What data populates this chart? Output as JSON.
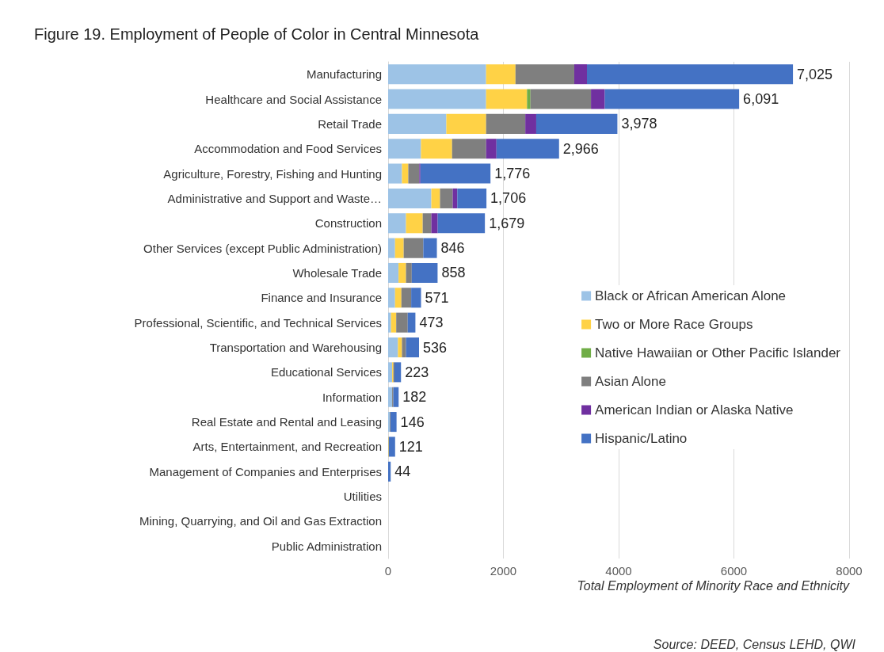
{
  "chart_data": {
    "type": "bar",
    "orientation": "horizontal",
    "stacked": true,
    "title": "Figure 19. Employment of People of Color in Central Minnesota",
    "xlabel": "Total Employment of Minority Race and Ethnicity",
    "annotations": [
      "Source: DEED, Census LEHD, QWI"
    ],
    "categories": [
      "Manufacturing",
      "Healthcare and Social Assistance",
      "Retail Trade",
      "Accommodation and Food Services",
      "Agriculture, Forestry, Fishing and Hunting",
      "Administrative and Support and Waste…",
      "Construction",
      "Other Services (except Public Administration)",
      "Wholesale Trade",
      "Finance and Insurance",
      "Professional, Scientific, and Technical Services",
      "Transportation and Warehousing",
      "Educational Services",
      "Information",
      "Real Estate and Rental and Leasing",
      "Arts, Entertainment, and Recreation",
      "Management of Companies and Enterprises",
      "Utilities",
      "Mining, Quarrying, and Oil and Gas Extraction",
      "Public Administration"
    ],
    "series": [
      {
        "name": "Black or African American Alone",
        "color": "#9dc3e6",
        "values": [
          1700,
          1700,
          1010,
          570,
          240,
          750,
          310,
          120,
          180,
          120,
          50,
          170,
          70,
          70,
          30,
          null,
          null,
          0,
          0,
          0
        ]
      },
      {
        "name": "Two or More Race Groups",
        "color": "#ffd246",
        "values": [
          510,
          710,
          690,
          540,
          110,
          150,
          290,
          150,
          130,
          110,
          90,
          70,
          20,
          0,
          0,
          10,
          0,
          0,
          0,
          0
        ]
      },
      {
        "name": "Native Hawaiian or Other Pacific Islander",
        "color": "#70ad47",
        "values": [
          0,
          60,
          0,
          0,
          0,
          0,
          0,
          0,
          0,
          0,
          0,
          0,
          0,
          0,
          0,
          0,
          0,
          0,
          0,
          0
        ]
      },
      {
        "name": "Asian Alone",
        "color": "#7f7f7f",
        "values": [
          1020,
          1050,
          680,
          590,
          190,
          220,
          150,
          340,
          100,
          170,
          200,
          70,
          20,
          20,
          10,
          0,
          0,
          0,
          0,
          0
        ]
      },
      {
        "name": "American Indian or Alaska Native",
        "color": "#7030a0",
        "values": [
          220,
          240,
          190,
          180,
          20,
          80,
          110,
          0,
          0,
          0,
          0,
          0,
          0,
          0,
          0,
          0,
          0,
          0,
          0,
          0
        ]
      },
      {
        "name": "Hispanic/Latino",
        "color": "#4472c4",
        "values": [
          3575,
          2331,
          1408,
          1086,
          1216,
          506,
          819,
          236,
          448,
          171,
          133,
          226,
          113,
          92,
          106,
          111,
          44,
          0,
          0,
          0
        ]
      }
    ],
    "totals": [
      "7,025",
      "6,091",
      "3,978",
      "2,966",
      "1,776",
      "1,706",
      "1,679",
      "846",
      "858",
      "571",
      "473",
      "536",
      "223",
      "182",
      "146",
      "121",
      "44",
      null,
      null,
      null
    ],
    "xlim": [
      0,
      8000
    ],
    "xticks": [
      0,
      2000,
      4000,
      6000,
      8000
    ],
    "grid": "x",
    "legend": "right"
  }
}
